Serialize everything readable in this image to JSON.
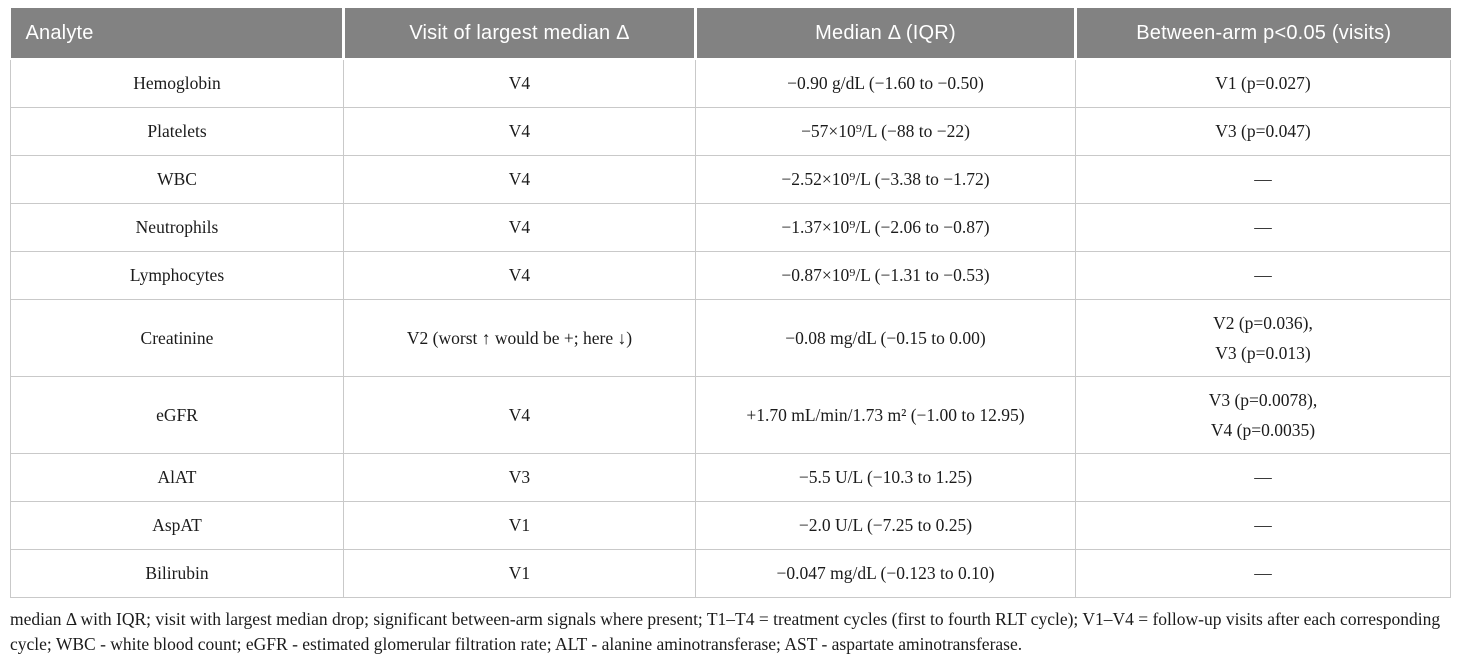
{
  "colors": {
    "header_bg": "#828282",
    "header_text": "#ffffff",
    "border": "#c9c9c9",
    "body_text": "#1b1b1b"
  },
  "table": {
    "columns": [
      "Analyte",
      "Visit of largest median Δ",
      "Median Δ (IQR)",
      "Between-arm p<0.05 (visits)"
    ],
    "rows": [
      {
        "analyte": "Hemoglobin",
        "visit": "V4",
        "median": "−0.90 g/dL (−1.60 to −0.50)",
        "pvalue": "V1 (p=0.027)"
      },
      {
        "analyte": "Platelets",
        "visit": "V4",
        "median": "−57×10⁹/L (−88 to −22)",
        "pvalue": "V3 (p=0.047)"
      },
      {
        "analyte": "WBC",
        "visit": "V4",
        "median": "−2.52×10⁹/L (−3.38 to −1.72)",
        "pvalue": "—"
      },
      {
        "analyte": "Neutrophils",
        "visit": "V4",
        "median": "−1.37×10⁹/L (−2.06 to −0.87)",
        "pvalue": "—"
      },
      {
        "analyte": "Lymphocytes",
        "visit": "V4",
        "median": "−0.87×10⁹/L (−1.31 to −0.53)",
        "pvalue": "—"
      },
      {
        "analyte": "Creatinine",
        "visit": "V2 (worst ↑ would be +; here ↓)",
        "median": "−0.08 mg/dL (−0.15 to 0.00)",
        "pvalue": "V2 (p=0.036),\nV3 (p=0.013)"
      },
      {
        "analyte": "eGFR",
        "visit": "V4",
        "median": "+1.70 mL/min/1.73 m² (−1.00 to 12.95)",
        "pvalue": "V3 (p=0.0078),\nV4 (p=0.0035)"
      },
      {
        "analyte": "AlAT",
        "visit": "V3",
        "median": "−5.5 U/L (−10.3 to 1.25)",
        "pvalue": "—"
      },
      {
        "analyte": "AspAT",
        "visit": "V1",
        "median": "−2.0 U/L (−7.25 to 0.25)",
        "pvalue": "—"
      },
      {
        "analyte": "Bilirubin",
        "visit": "V1",
        "median": "−0.047 mg/dL (−0.123 to 0.10)",
        "pvalue": "—"
      }
    ]
  },
  "footnote": "median Δ with IQR; visit with largest median drop; significant between-arm signals where present; T1–T4 = treatment cycles (first to fourth RLT cycle); V1–V4 = follow-up visits after each corresponding cycle; WBC - white blood count; eGFR - estimated glomerular filtration rate; ALT - alanine aminotransferase; AST - aspartate aminotransferase."
}
